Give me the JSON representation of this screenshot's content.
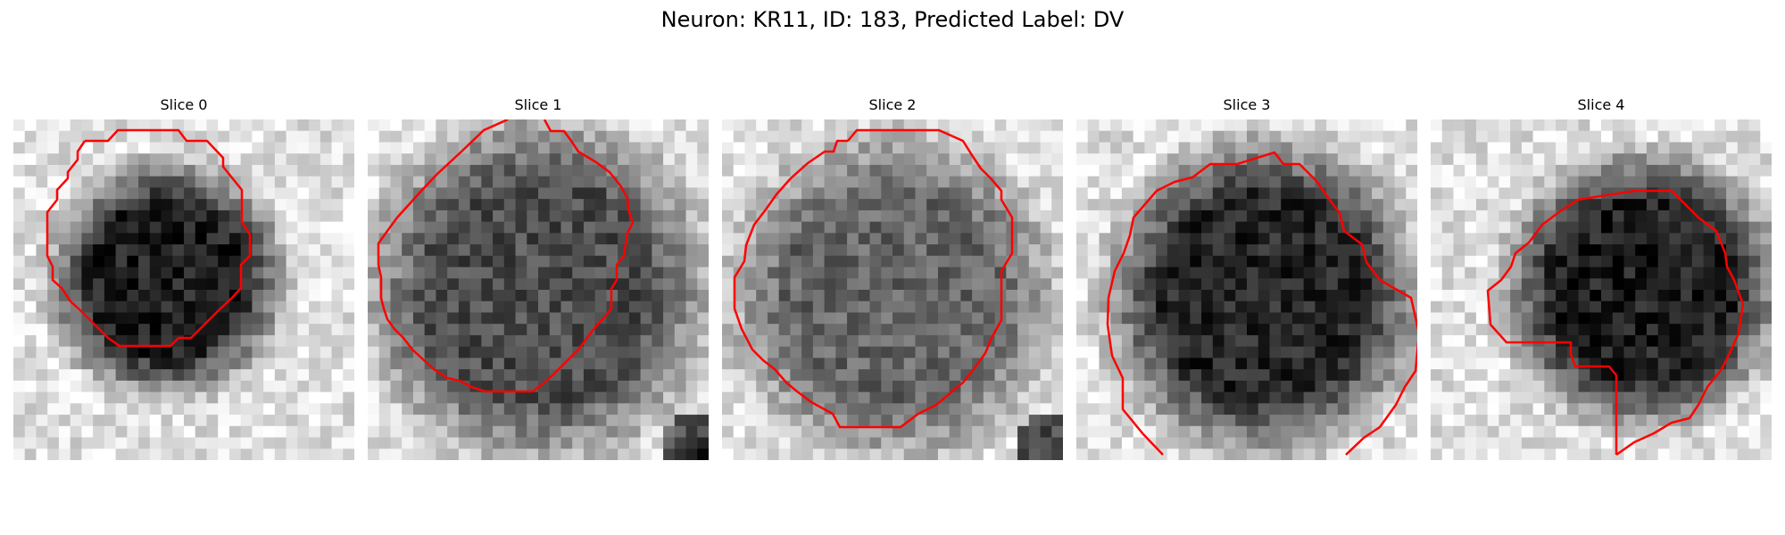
{
  "figure": {
    "suptitle": "Neuron: KR11, ID: 183, Predicted Label: DV"
  },
  "contour_color": "#ff0000",
  "panels": [
    {
      "title": "Slice 0",
      "dark_center": [
        0.45,
        0.47
      ],
      "dark_radius": 0.3,
      "dark_level": 0.12,
      "bright_corner": null
    },
    {
      "title": "Slice 1",
      "dark_center": [
        0.5,
        0.5
      ],
      "dark_radius": 0.44,
      "dark_level": 0.3,
      "bright_corner": [
        1.0,
        1.0
      ]
    },
    {
      "title": "Slice 2",
      "dark_center": [
        0.5,
        0.52
      ],
      "dark_radius": 0.42,
      "dark_level": 0.4,
      "bright_corner": [
        1.0,
        1.0
      ]
    },
    {
      "title": "Slice 3",
      "dark_center": [
        0.55,
        0.52
      ],
      "dark_radius": 0.4,
      "dark_level": 0.15,
      "bright_corner": null
    },
    {
      "title": "Slice 4",
      "dark_center": [
        0.62,
        0.5
      ],
      "dark_radius": 0.35,
      "dark_level": 0.12,
      "bright_corner": null
    }
  ]
}
